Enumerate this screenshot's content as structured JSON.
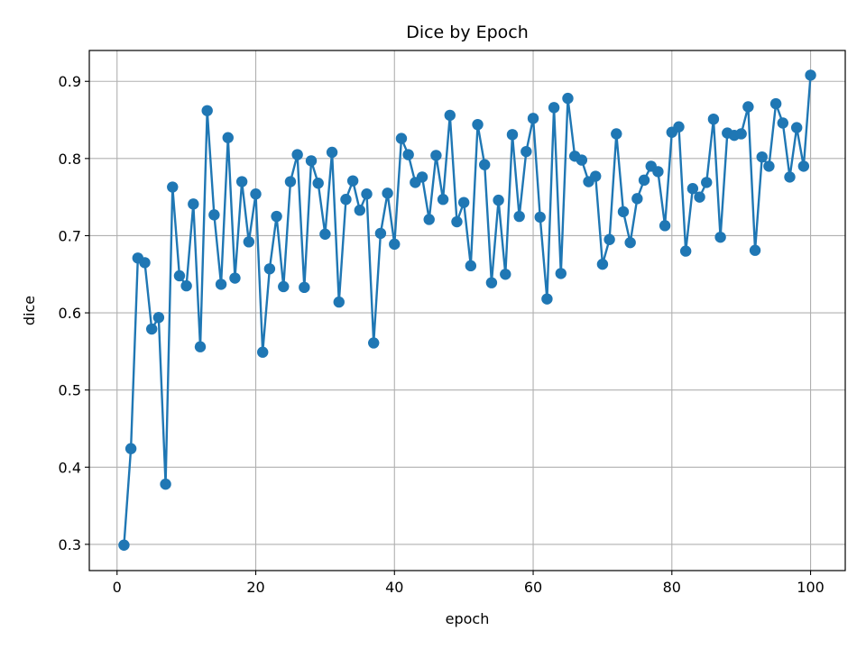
{
  "chart_data": {
    "type": "line",
    "title": "Dice by Epoch",
    "xlabel": "epoch",
    "ylabel": "dice",
    "xlim": [
      -4,
      105
    ],
    "ylim": [
      0.266,
      0.94
    ],
    "xticks": [
      0,
      20,
      40,
      60,
      80,
      100
    ],
    "xtick_labels": [
      "0",
      "20",
      "40",
      "60",
      "80",
      "100"
    ],
    "yticks": [
      0.3,
      0.4,
      0.5,
      0.6,
      0.7,
      0.8,
      0.9
    ],
    "ytick_labels": [
      "0.3",
      "0.4",
      "0.5",
      "0.6",
      "0.7",
      "0.8",
      "0.9"
    ],
    "grid": true,
    "marker": "circle",
    "color": "#1f77b4",
    "series": [
      {
        "x": [
          1,
          2,
          3,
          4,
          5,
          6,
          7,
          8,
          9,
          10,
          11,
          12,
          13,
          14,
          15,
          16,
          17,
          18,
          19,
          20,
          21,
          22,
          23,
          24,
          25,
          26,
          27,
          28,
          29,
          30,
          31,
          32,
          33,
          34,
          35,
          36,
          37,
          38,
          39,
          40,
          41,
          42,
          43,
          44,
          45,
          46,
          47,
          48,
          49,
          50,
          51,
          52,
          53,
          54,
          55,
          56,
          57,
          58,
          59,
          60,
          61,
          62,
          63,
          64,
          65,
          66,
          67,
          68,
          69,
          70,
          71,
          72,
          73,
          74,
          75,
          76,
          77,
          78,
          79,
          80,
          81,
          82,
          83,
          84,
          85,
          86,
          87,
          88,
          89,
          90,
          91,
          92,
          93,
          94,
          95,
          96,
          97,
          98,
          99,
          100
        ],
        "y": [
          0.299,
          0.424,
          0.671,
          0.665,
          0.579,
          0.594,
          0.378,
          0.763,
          0.648,
          0.635,
          0.741,
          0.556,
          0.862,
          0.727,
          0.637,
          0.827,
          0.645,
          0.77,
          0.692,
          0.754,
          0.549,
          0.657,
          0.725,
          0.634,
          0.77,
          0.805,
          0.633,
          0.797,
          0.768,
          0.702,
          0.808,
          0.614,
          0.747,
          0.771,
          0.733,
          0.754,
          0.561,
          0.703,
          0.755,
          0.689,
          0.826,
          0.805,
          0.769,
          0.776,
          0.721,
          0.804,
          0.747,
          0.856,
          0.718,
          0.743,
          0.661,
          0.844,
          0.792,
          0.639,
          0.746,
          0.65,
          0.831,
          0.725,
          0.809,
          0.852,
          0.724,
          0.618,
          0.866,
          0.651,
          0.878,
          0.803,
          0.798,
          0.77,
          0.777,
          0.663,
          0.695,
          0.832,
          0.731,
          0.691,
          0.748,
          0.772,
          0.79,
          0.783,
          0.713,
          0.834,
          0.841,
          0.68,
          0.761,
          0.75,
          0.769,
          0.851,
          0.698,
          0.833,
          0.83,
          0.832,
          0.867,
          0.681,
          0.802,
          0.79,
          0.871,
          0.846,
          0.776,
          0.84,
          0.79,
          0.908
        ]
      }
    ]
  }
}
